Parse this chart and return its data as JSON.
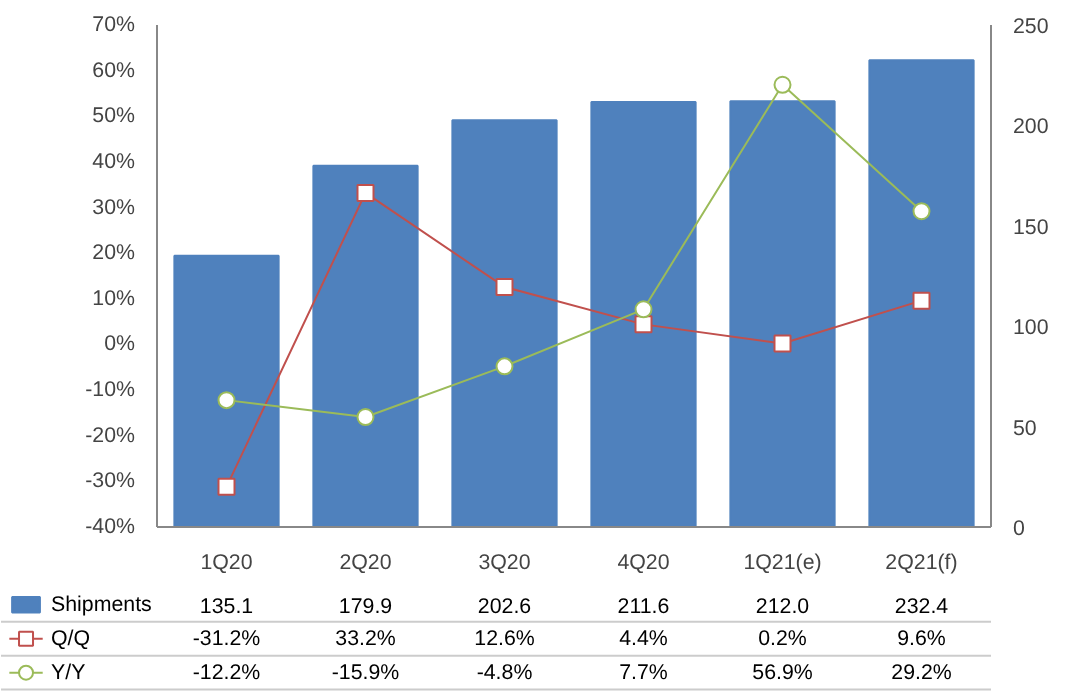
{
  "chart_data": {
    "type": "bar",
    "categories": [
      "1Q20",
      "2Q20",
      "3Q20",
      "4Q20",
      "1Q21(e)",
      "2Q21(f)"
    ],
    "series": [
      {
        "name": "Shipments",
        "axis": "y2",
        "color": "#4f81bd",
        "values": [
          135.1,
          179.9,
          202.6,
          211.6,
          212.0,
          232.4
        ],
        "value_labels": [
          "135.1",
          "179.9",
          "202.6",
          "211.6",
          "212.0",
          "232.4"
        ]
      },
      {
        "name": "Q/Q",
        "type": "line",
        "color": "#c0504d",
        "marker": "square",
        "values": [
          -31.2,
          33.2,
          12.6,
          4.4,
          0.2,
          9.6
        ],
        "value_labels": [
          "-31.2%",
          "33.2%",
          "12.6%",
          "4.4%",
          "0.2%",
          "9.6%"
        ]
      },
      {
        "name": "Y/Y",
        "type": "line",
        "color": "#9bbb59",
        "marker": "circle",
        "values": [
          -12.2,
          -15.9,
          -4.8,
          7.7,
          56.9,
          29.2
        ],
        "value_labels": [
          "-12.2%",
          "-15.9%",
          "-4.8%",
          "7.7%",
          "56.9%",
          "29.2%"
        ]
      }
    ],
    "ylim": [
      -40,
      70
    ],
    "yticks": [
      {
        "value": -40,
        "label": "-40%"
      },
      {
        "value": -30,
        "label": "-30%"
      },
      {
        "value": -20,
        "label": "-20%"
      },
      {
        "value": -10,
        "label": "-10%"
      },
      {
        "value": 0,
        "label": "0%"
      },
      {
        "value": 10,
        "label": "10%"
      },
      {
        "value": 20,
        "label": "20%"
      },
      {
        "value": 30,
        "label": "30%"
      },
      {
        "value": 40,
        "label": "40%"
      },
      {
        "value": 50,
        "label": "50%"
      },
      {
        "value": 60,
        "label": "60%"
      },
      {
        "value": 70,
        "label": "70%"
      }
    ],
    "y2lim": [
      0,
      250
    ],
    "y2ticks": [
      0,
      50,
      100,
      150,
      200,
      250
    ],
    "grid": false,
    "legend": "bottom"
  }
}
